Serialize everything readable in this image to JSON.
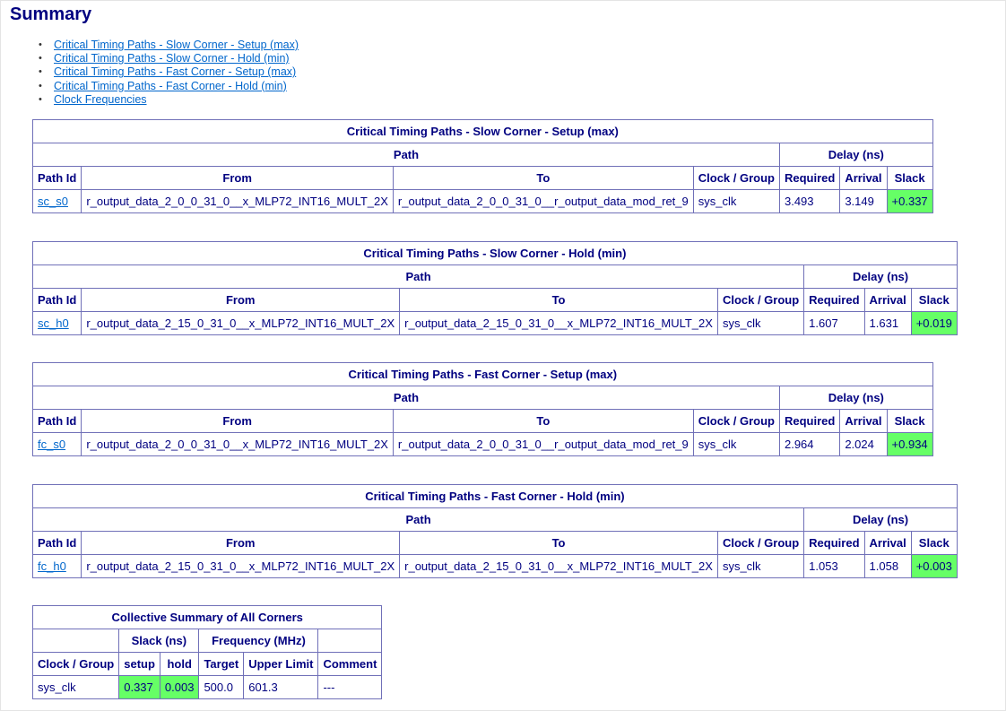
{
  "title": "Summary",
  "links": [
    "Critical Timing Paths - Slow Corner - Setup (max)",
    "Critical Timing Paths - Slow Corner - Hold (min)",
    "Critical Timing Paths - Fast Corner - Setup (max)",
    "Critical Timing Paths - Fast Corner - Hold (min)",
    "Clock Frequencies"
  ],
  "path_headers": {
    "path": "Path",
    "delay": "Delay (ns)",
    "path_id": "Path Id",
    "from": "From",
    "to": "To",
    "clock": "Clock / Group",
    "required": "Required",
    "arrival": "Arrival",
    "slack": "Slack"
  },
  "pass_color": "#66ff66",
  "tables": [
    {
      "title": "Critical Timing Paths - Slow Corner - Setup (max)",
      "row": {
        "id": "sc_s0",
        "from": "r_output_data_2_0_0_31_0__x_MLP72_INT16_MULT_2X",
        "to": "r_output_data_2_0_0_31_0__r_output_data_mod_ret_9",
        "clock": "sys_clk",
        "required": "3.493",
        "arrival": "3.149",
        "slack": "+0.337"
      }
    },
    {
      "title": "Critical Timing Paths - Slow Corner - Hold (min)",
      "row": {
        "id": "sc_h0",
        "from": "r_output_data_2_15_0_31_0__x_MLP72_INT16_MULT_2X",
        "to": "r_output_data_2_15_0_31_0__x_MLP72_INT16_MULT_2X",
        "clock": "sys_clk",
        "required": "1.607",
        "arrival": "1.631",
        "slack": "+0.019"
      }
    },
    {
      "title": "Critical Timing Paths - Fast Corner - Setup (max)",
      "row": {
        "id": "fc_s0",
        "from": "r_output_data_2_0_0_31_0__x_MLP72_INT16_MULT_2X",
        "to": "r_output_data_2_0_0_31_0__r_output_data_mod_ret_9",
        "clock": "sys_clk",
        "required": "2.964",
        "arrival": "2.024",
        "slack": "+0.934"
      }
    },
    {
      "title": "Critical Timing Paths - Fast Corner - Hold (min)",
      "row": {
        "id": "fc_h0",
        "from": "r_output_data_2_15_0_31_0__x_MLP72_INT16_MULT_2X",
        "to": "r_output_data_2_15_0_31_0__x_MLP72_INT16_MULT_2X",
        "clock": "sys_clk",
        "required": "1.053",
        "arrival": "1.058",
        "slack": "+0.003"
      }
    }
  ],
  "summary": {
    "title": "Collective Summary of All Corners",
    "slack_group": "Slack (ns)",
    "freq_group": "Frequency (MHz)",
    "headers": [
      "Clock / Group",
      "setup",
      "hold",
      "Target",
      "Upper Limit",
      "Comment"
    ],
    "row": {
      "clock": "sys_clk",
      "setup": "0.337",
      "hold": "0.003",
      "target": "500.0",
      "upper": "601.3",
      "comment": "---"
    }
  }
}
